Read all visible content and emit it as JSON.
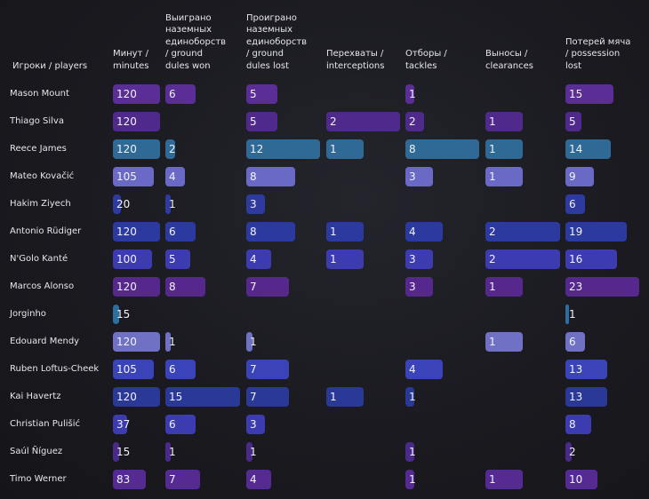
{
  "chart_data": {
    "type": "table",
    "row_header": "Игроки / players",
    "columns": [
      {
        "key": "minutes",
        "label_lines": [
          "Минут /",
          "minutes"
        ]
      },
      {
        "key": "ground_won",
        "label_lines": [
          "Выиграно",
          "наземных",
          "единоборств",
          "/ ground",
          "dules won"
        ]
      },
      {
        "key": "ground_lost",
        "label_lines": [
          "Проиграно",
          "наземных",
          "единоборств",
          "/ ground",
          "dules lost"
        ]
      },
      {
        "key": "interceptions",
        "label_lines": [
          "Перехваты /",
          "interceptions"
        ]
      },
      {
        "key": "tackles",
        "label_lines": [
          "Отборы /",
          "tackles"
        ]
      },
      {
        "key": "clearances",
        "label_lines": [
          "Выносы /",
          "clearances"
        ]
      },
      {
        "key": "possession_lost",
        "label_lines": [
          "Потерей мяча",
          "/ possession",
          "lost"
        ]
      }
    ],
    "rows": [
      {
        "player": "Mason Mount",
        "values": [
          120,
          6,
          5,
          null,
          1,
          null,
          15
        ]
      },
      {
        "player": "Thiago Silva",
        "values": [
          120,
          null,
          5,
          2,
          2,
          1,
          5
        ]
      },
      {
        "player": "Reece James",
        "values": [
          120,
          2,
          12,
          1,
          8,
          1,
          14
        ]
      },
      {
        "player": "Mateo Kovačić",
        "values": [
          105,
          4,
          8,
          null,
          3,
          1,
          9
        ]
      },
      {
        "player": "Hakim Ziyech",
        "values": [
          20,
          1,
          3,
          null,
          null,
          null,
          6
        ]
      },
      {
        "player": "Antonio Rüdiger",
        "values": [
          120,
          6,
          8,
          1,
          4,
          2,
          19
        ]
      },
      {
        "player": "N'Golo Kanté",
        "values": [
          100,
          5,
          4,
          1,
          3,
          2,
          16
        ]
      },
      {
        "player": "Marcos Alonso",
        "values": [
          120,
          8,
          7,
          null,
          3,
          1,
          23
        ]
      },
      {
        "player": "Jorginho",
        "values": [
          15,
          null,
          null,
          null,
          null,
          null,
          1
        ]
      },
      {
        "player": "Edouard Mendy",
        "values": [
          120,
          1,
          1,
          null,
          null,
          1,
          6
        ]
      },
      {
        "player": "Ruben Loftus-Cheek",
        "values": [
          105,
          6,
          7,
          null,
          4,
          null,
          13
        ]
      },
      {
        "player": "Kai Havertz",
        "values": [
          120,
          15,
          7,
          1,
          1,
          null,
          13
        ]
      },
      {
        "player": "Christian Pulišić",
        "values": [
          37,
          6,
          3,
          null,
          null,
          null,
          8
        ]
      },
      {
        "player": "Saúl Ñíguez",
        "values": [
          15,
          1,
          1,
          null,
          1,
          null,
          2
        ]
      },
      {
        "player": "Timo Werner",
        "values": [
          83,
          7,
          4,
          null,
          1,
          1,
          10
        ]
      }
    ],
    "row_colors": [
      "#5b2d96",
      "#4f2a8c",
      "#2f6a96",
      "#6a6ac6",
      "#2e3a9e",
      "#2c3aa0",
      "#3c3cb0",
      "#56288e",
      "#2e6e9e",
      "#7070c4",
      "#3a44b8",
      "#2a3896",
      "#3c3cb0",
      "#4a2a88",
      "#552a92"
    ]
  }
}
